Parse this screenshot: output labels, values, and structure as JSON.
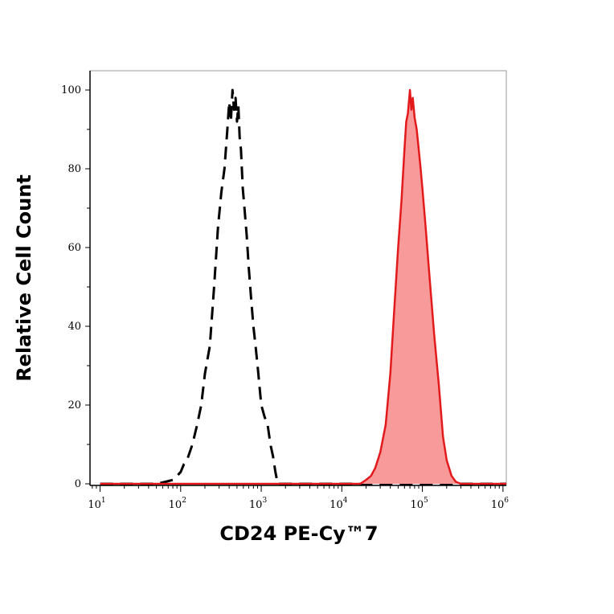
{
  "chart_data": {
    "type": "area",
    "xlabel": "CD24 PE-Cy™7",
    "ylabel": "Relative Cell Count",
    "x_scale": "log",
    "xlim": [
      7.5,
      1100000
    ],
    "ylim": [
      0,
      100
    ],
    "x_ticks": [
      {
        "base": "10",
        "exp": "1",
        "value": 10
      },
      {
        "base": "10",
        "exp": "2",
        "value": 100
      },
      {
        "base": "10",
        "exp": "3",
        "value": 1000
      },
      {
        "base": "10",
        "exp": "4",
        "value": 10000
      },
      {
        "base": "10",
        "exp": "5",
        "value": 100000
      },
      {
        "base": "10",
        "exp": "6",
        "value": 1000000
      }
    ],
    "y_ticks": [
      "0",
      "20",
      "40",
      "60",
      "80",
      "100"
    ],
    "grid": false,
    "series": [
      {
        "style": "dashed",
        "color": "#000000",
        "fill": "none",
        "x": [
          10,
          30,
          50,
          65,
          80,
          90,
          100,
          110,
          120,
          140,
          160,
          180,
          200,
          230,
          260,
          290,
          320,
          350,
          380,
          400,
          420,
          440,
          460,
          480,
          500,
          520,
          540,
          560,
          590,
          620,
          660,
          700,
          750,
          800,
          850,
          900,
          950,
          1000,
          1100,
          1200,
          1300,
          1400,
          1500,
          1600,
          2000,
          10000,
          100000,
          1100000
        ],
        "values": [
          0,
          0,
          0,
          0.5,
          1,
          2,
          3,
          5,
          6,
          10,
          15,
          20,
          28,
          35,
          50,
          65,
          74,
          80,
          90,
          97,
          92,
          100,
          95,
          98,
          92,
          96,
          88,
          85,
          75,
          70,
          63,
          55,
          47,
          40,
          35,
          30,
          25,
          20,
          17,
          15,
          10,
          7,
          3,
          0,
          0,
          0,
          0,
          0
        ]
      },
      {
        "style": "solid",
        "color": "#e31a1c",
        "fill": "#f89a9a",
        "x": [
          10,
          1000,
          10000,
          17000,
          20000,
          23000,
          26000,
          30000,
          35000,
          40000,
          45000,
          50000,
          55000,
          60000,
          63000,
          66000,
          70000,
          73000,
          76000,
          80000,
          85000,
          90000,
          95000,
          100000,
          110000,
          120000,
          140000,
          160000,
          180000,
          200000,
          230000,
          260000,
          300000,
          400000,
          1100000
        ],
        "values": [
          0,
          0,
          0,
          0,
          1,
          2,
          4,
          8,
          15,
          28,
          45,
          60,
          72,
          85,
          92,
          94,
          100,
          95,
          98,
          93,
          90,
          85,
          80,
          75,
          65,
          55,
          38,
          25,
          12,
          6,
          2,
          0.5,
          0,
          0,
          0
        ]
      }
    ]
  }
}
